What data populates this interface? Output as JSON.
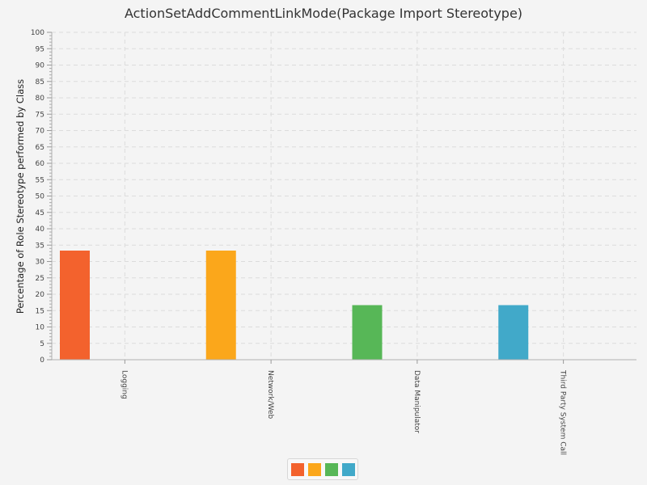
{
  "chart_data": {
    "type": "bar",
    "title": "ActionSetAddCommentLinkMode(Package Import Stereotype)",
    "xlabel": "",
    "ylabel": "Percentage of Role Stereotype performed by Class",
    "ylim": [
      0,
      100
    ],
    "y_major_step": 5,
    "y_ticks": [
      "0",
      "5",
      "10",
      "15",
      "20",
      "25",
      "30",
      "35",
      "40",
      "45",
      "50",
      "55",
      "60",
      "65",
      "70",
      "75",
      "80",
      "85",
      "90",
      "95",
      "100"
    ],
    "grid": true,
    "legend_position": "bottom",
    "categories": [
      "Logging",
      "Network/Web",
      "Data Manipulator",
      "Third Party System Call"
    ],
    "values": [
      33.33,
      33.33,
      16.67,
      16.67
    ],
    "colors": [
      "#f3622d",
      "#fba71b",
      "#57b757",
      "#41a9c9"
    ]
  }
}
